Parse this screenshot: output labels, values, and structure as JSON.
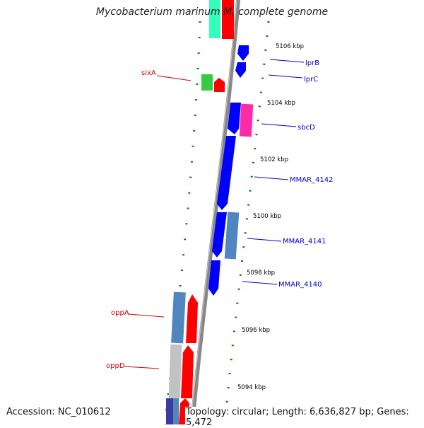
{
  "title": "Mycobacterium marinum M, complete genome",
  "footer": {
    "accession": "Accession: NC_010612",
    "summary": "Topology: circular; Length: 6,636,827 bp; Genes: 5,472"
  },
  "kbp_ticks": [
    "5106 kbp",
    "5104 kbp",
    "5102 kbp",
    "5100 kbp",
    "5098 kbp",
    "5096 kbp",
    "5094 kbp"
  ],
  "gene_labels_left": [
    "sixA",
    "oppA",
    "oppD"
  ],
  "gene_labels_right": [
    "lprB",
    "lprC",
    "sbcD",
    "MMAR_4142",
    "MMAR_4141",
    "MMAR_4140"
  ],
  "colors": {
    "forward_gene": "#ff0000",
    "reverse_gene": "#0000ff",
    "steel_blue_gene": "#4f86bf",
    "magenta_gene": "#ff2aa5",
    "green_gene": "#33cc44",
    "teal_gene": "#33ffaa",
    "grey_gene": "#c2c2c2",
    "backbone": "#888888",
    "tick_dots": "#008000",
    "left_label": "#dd0000",
    "right_label": "#0000cc"
  }
}
